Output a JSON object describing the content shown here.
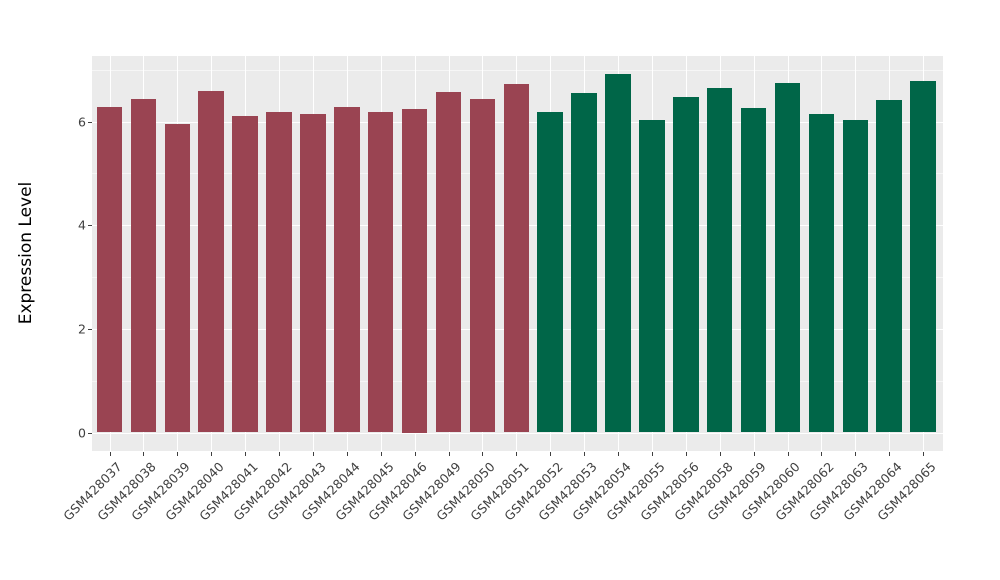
{
  "chart_data": {
    "type": "bar",
    "title": "",
    "xlabel": "",
    "ylabel": "Expression Level",
    "legend_position": "none",
    "grid": true,
    "panel_background": "#EBEBEB",
    "gridline_color": "#FFFFFF",
    "axis_text_color": "#404040",
    "x_label_angle": 45,
    "ylim": [
      0,
      7.3
    ],
    "yticks": [
      0,
      2,
      4,
      6
    ],
    "yticks_minor": [
      1,
      3,
      5,
      7
    ],
    "group_colors": {
      "group1": "#9A4452",
      "group2": "#006648"
    },
    "categories": [
      "GSM428037",
      "GSM428038",
      "GSM428039",
      "GSM428040",
      "GSM428041",
      "GSM428042",
      "GSM428043",
      "GSM428044",
      "GSM428045",
      "GSM428046",
      "GSM428049",
      "GSM428050",
      "GSM428051",
      "GSM428052",
      "GSM428053",
      "GSM428054",
      "GSM428055",
      "GSM428056",
      "GSM428058",
      "GSM428059",
      "GSM428060",
      "GSM428062",
      "GSM428063",
      "GSM428064",
      "GSM428065"
    ],
    "values": [
      6.28,
      6.43,
      5.96,
      6.58,
      6.11,
      6.19,
      6.15,
      6.28,
      6.19,
      6.25,
      6.57,
      6.43,
      6.73,
      6.19,
      6.55,
      6.91,
      6.03,
      6.47,
      6.64,
      6.27,
      6.75,
      6.15,
      6.02,
      6.42,
      6.78
    ],
    "bar_groups": [
      "group1",
      "group1",
      "group1",
      "group1",
      "group1",
      "group1",
      "group1",
      "group1",
      "group1",
      "group1",
      "group1",
      "group1",
      "group1",
      "group2",
      "group2",
      "group2",
      "group2",
      "group2",
      "group2",
      "group2",
      "group2",
      "group2",
      "group2",
      "group2",
      "group2"
    ]
  }
}
